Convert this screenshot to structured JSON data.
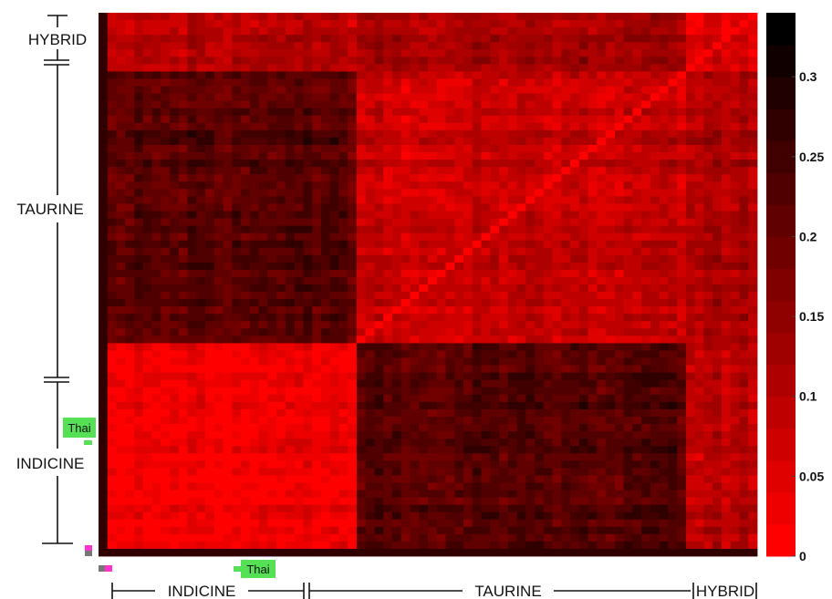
{
  "chart_data": {
    "type": "heatmap",
    "title": "",
    "groups": [
      {
        "name": "INDICINE",
        "color": "#ff0000"
      },
      {
        "name": "TAURINE",
        "color": "#ff0000"
      },
      {
        "name": "HYBRID",
        "color": "#ff0000"
      }
    ],
    "row_groups_top_to_bottom": [
      "HYBRID",
      "TAURINE",
      "INDICINE"
    ],
    "col_groups_left_to_right": [
      "INDICINE",
      "TAURINE",
      "HYBRID"
    ],
    "highlight_label": "Thai",
    "highlight_color": "#55e055",
    "within_group_distance": {
      "INDICINE": 0.02,
      "TAURINE": 0.08,
      "HYBRID": 0.06
    },
    "between_group_distance": {
      "INDICINE-TAURINE": 0.22,
      "INDICINE-HYBRID": 0.1,
      "TAURINE-HYBRID": 0.12
    },
    "colorbar": {
      "min": 0,
      "max": 0.34,
      "ticks": [
        0,
        0.05,
        0.1,
        0.15,
        0.2,
        0.25,
        0.3
      ],
      "tick_labels": [
        "0",
        "0.05",
        "0.1",
        "0.15",
        "0.2",
        "0.25",
        "0.3"
      ],
      "colormap": "red-to-black"
    }
  }
}
